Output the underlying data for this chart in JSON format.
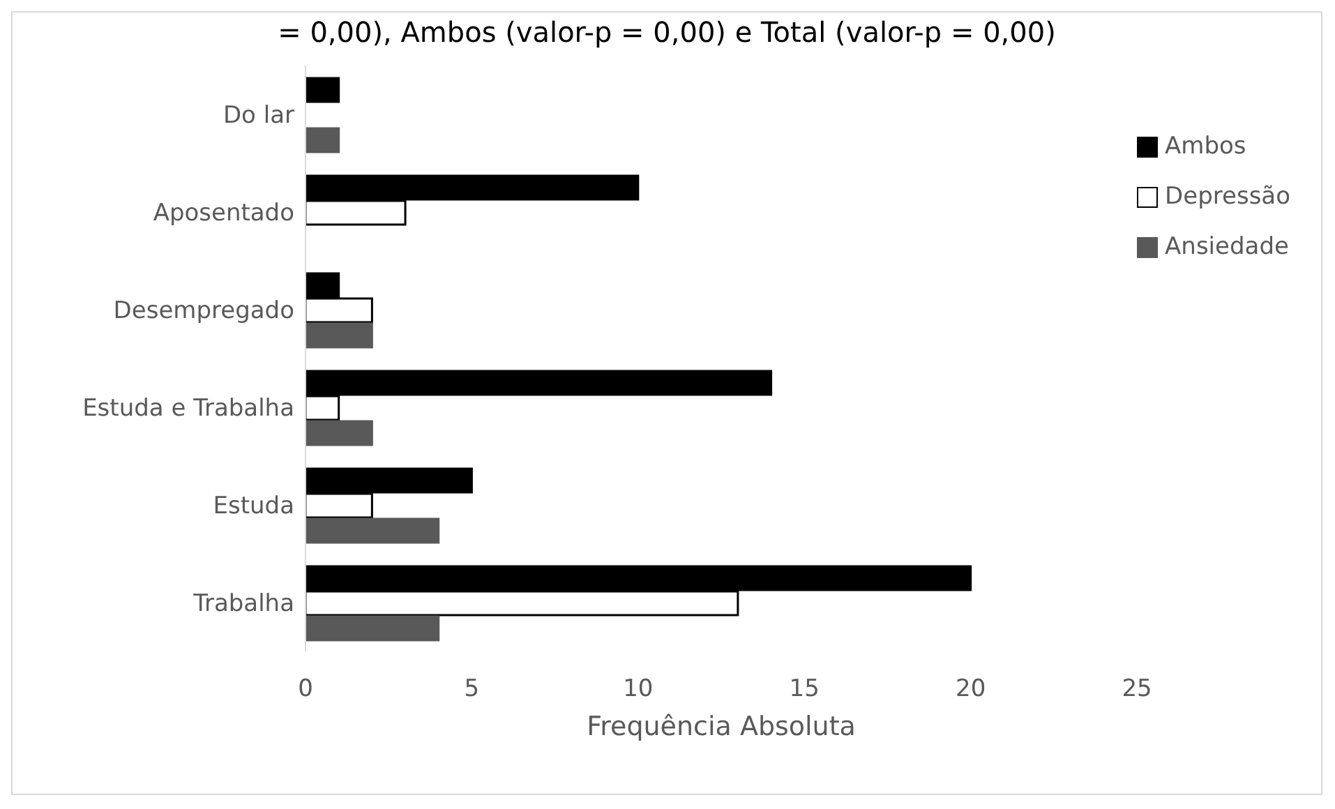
{
  "chart_data": {
    "type": "bar",
    "orientation": "horizontal",
    "title": "= 0,00), Ambos (valor-p = 0,00) e Total (valor-p = 0,00)",
    "xlabel": "Frequência Absoluta",
    "categories": [
      "Do lar",
      "Aposentado",
      "Desempregado",
      "Estuda e Trabalha",
      "Estuda",
      "Trabalha"
    ],
    "series": [
      {
        "name": "Ambos",
        "color": "#000000",
        "values": [
          1,
          10,
          1,
          14,
          5,
          20
        ]
      },
      {
        "name": "Depressão",
        "color": "#ffffff",
        "values": [
          0,
          3,
          2,
          1,
          2,
          13
        ]
      },
      {
        "name": "Ansiedade",
        "color": "#595959",
        "values": [
          1,
          0,
          2,
          2,
          4,
          4
        ]
      }
    ],
    "xlim": [
      0,
      25
    ],
    "xticks": [
      0,
      5,
      10,
      15,
      20,
      25
    ],
    "grid": false,
    "legend": "right"
  }
}
